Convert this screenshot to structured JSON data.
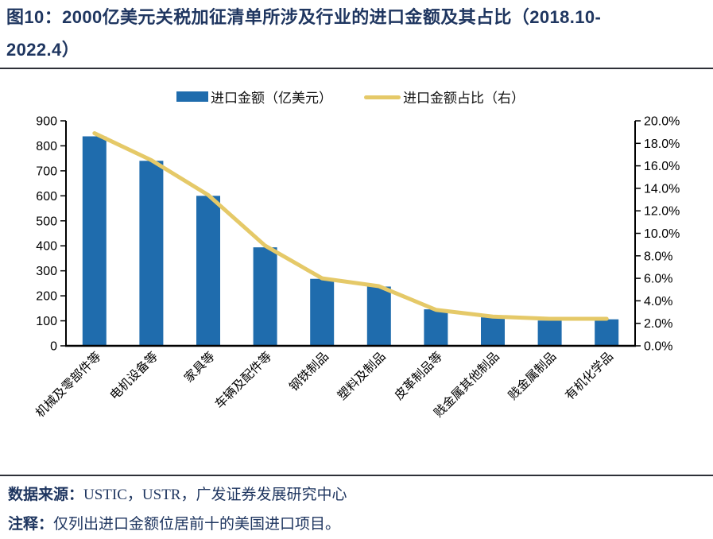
{
  "title": "图10：2000亿美元关税加征清单所涉及行业的进口金额及其占比（2018.10-2022.4）",
  "legend": {
    "bar_label": "进口金额（亿美元）",
    "line_label": "进口金额占比（右）"
  },
  "chart_data": {
    "type": "bar",
    "title": "2000亿美元关税加征清单所涉及行业的进口金额及其占比（2018.10-2022.4）",
    "categories": [
      "机械及零部件等",
      "电机设备等",
      "家具等",
      "车辆及配件等",
      "钢铁制品",
      "塑料及制品",
      "皮革制品等",
      "贱金属其他制品",
      "贱金属制品",
      "有机化学品"
    ],
    "series": [
      {
        "name": "进口金额（亿美元）",
        "type": "bar",
        "axis": "left",
        "color": "#1F6CAD",
        "values": [
          838,
          740,
          600,
          394,
          268,
          237,
          146,
          114,
          101,
          106
        ]
      },
      {
        "name": "进口金额占比（右）",
        "type": "line",
        "axis": "right",
        "color": "#E5C968",
        "values": [
          18.9,
          16.5,
          13.4,
          8.9,
          6.0,
          5.3,
          3.2,
          2.6,
          2.4,
          2.4
        ],
        "unit": "%"
      }
    ],
    "left_axis": {
      "min": 0,
      "max": 900,
      "step": 100
    },
    "right_axis": {
      "min": 0,
      "max": 20,
      "step": 2,
      "format": "percent_1dp"
    },
    "grid": false,
    "legend_position": "top"
  },
  "footer": {
    "source_label": "数据来源：",
    "source_text": "USTIC，USTR，广发证券发展研究中心",
    "note_label": "注释：",
    "note_text": "仅列出进口金额位居前十的美国进口项目。"
  },
  "colors": {
    "title_navy": "#1F3660",
    "bar_blue": "#1F6CAD",
    "line_gold": "#E5C968",
    "axis_black": "#000000",
    "rule_dark": "#2e3038"
  }
}
